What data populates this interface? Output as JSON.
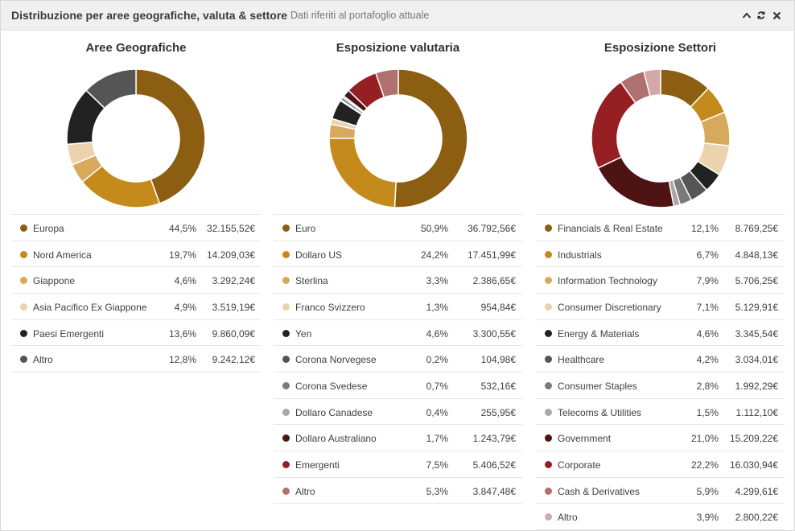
{
  "header": {
    "title": "Distribuzione per aree geografiche, valuta & settore",
    "subtitle": "Dati riferiti al portafoglio attuale"
  },
  "panels": [
    {
      "id": "geo",
      "title": "Aree Geografiche",
      "items": [
        {
          "label": "Europa",
          "pct": "44,5%",
          "pct_value": 44.5,
          "value": "32.155,52€",
          "color": "#8b5e12"
        },
        {
          "label": "Nord America",
          "pct": "19,7%",
          "pct_value": 19.7,
          "value": "14.209,03€",
          "color": "#c48a1b"
        },
        {
          "label": "Giappone",
          "pct": "4,6%",
          "pct_value": 4.6,
          "value": "3.292,24€",
          "color": "#d6a95c"
        },
        {
          "label": "Asia Pacifico Ex Giappone",
          "pct": "4,9%",
          "pct_value": 4.9,
          "value": "3.519,19€",
          "color": "#ead3ad"
        },
        {
          "label": "Paesi Emergenti",
          "pct": "13,6%",
          "pct_value": 13.6,
          "value": "9.860,09€",
          "color": "#222222"
        },
        {
          "label": "Altro",
          "pct": "12,8%",
          "pct_value": 12.8,
          "value": "9.242,12€",
          "color": "#555555"
        }
      ]
    },
    {
      "id": "fx",
      "title": "Esposizione valutaria",
      "items": [
        {
          "label": "Euro",
          "pct": "50,9%",
          "pct_value": 50.9,
          "value": "36.792,56€",
          "color": "#8b5e12"
        },
        {
          "label": "Dollaro US",
          "pct": "24,2%",
          "pct_value": 24.2,
          "value": "17.451,99€",
          "color": "#c48a1b"
        },
        {
          "label": "Sterlina",
          "pct": "3,3%",
          "pct_value": 3.3,
          "value": "2.386,65€",
          "color": "#d6a95c"
        },
        {
          "label": "Franco Svizzero",
          "pct": "1,3%",
          "pct_value": 1.3,
          "value": "954,84€",
          "color": "#ead3ad"
        },
        {
          "label": "Yen",
          "pct": "4,6%",
          "pct_value": 4.6,
          "value": "3.300,55€",
          "color": "#222222"
        },
        {
          "label": "Corona Norvegese",
          "pct": "0,2%",
          "pct_value": 0.2,
          "value": "104,98€",
          "color": "#555555"
        },
        {
          "label": "Corona Svedese",
          "pct": "0,7%",
          "pct_value": 0.7,
          "value": "532,16€",
          "color": "#7a7a7a"
        },
        {
          "label": "Dollaro Canadese",
          "pct": "0,4%",
          "pct_value": 0.4,
          "value": "255,95€",
          "color": "#a8a8a8"
        },
        {
          "label": "Dollaro Australiano",
          "pct": "1,7%",
          "pct_value": 1.7,
          "value": "1.243,79€",
          "color": "#4e1414"
        },
        {
          "label": "Emergenti",
          "pct": "7,5%",
          "pct_value": 7.5,
          "value": "5.406,52€",
          "color": "#961f24"
        },
        {
          "label": "Altro",
          "pct": "5,3%",
          "pct_value": 5.3,
          "value": "3.847,48€",
          "color": "#b07070"
        }
      ]
    },
    {
      "id": "sect",
      "title": "Esposizione Settori",
      "items": [
        {
          "label": "Financials & Real Estate",
          "pct": "12,1%",
          "pct_value": 12.1,
          "value": "8.769,25€",
          "color": "#8b5e12"
        },
        {
          "label": "Industrials",
          "pct": "6,7%",
          "pct_value": 6.7,
          "value": "4.848,13€",
          "color": "#c48a1b"
        },
        {
          "label": "Information Technology",
          "pct": "7,9%",
          "pct_value": 7.9,
          "value": "5.706,25€",
          "color": "#d6a95c"
        },
        {
          "label": "Consumer Discretionary",
          "pct": "7,1%",
          "pct_value": 7.1,
          "value": "5.129,91€",
          "color": "#ead3ad"
        },
        {
          "label": "Energy & Materials",
          "pct": "4,6%",
          "pct_value": 4.6,
          "value": "3.345,54€",
          "color": "#222222"
        },
        {
          "label": "Healthcare",
          "pct": "4,2%",
          "pct_value": 4.2,
          "value": "3.034,01€",
          "color": "#555555"
        },
        {
          "label": "Consumer Staples",
          "pct": "2,8%",
          "pct_value": 2.8,
          "value": "1.992,29€",
          "color": "#7a7a7a"
        },
        {
          "label": "Telecoms & Utilities",
          "pct": "1,5%",
          "pct_value": 1.5,
          "value": "1.112,10€",
          "color": "#a8a8a8"
        },
        {
          "label": "Government",
          "pct": "21,0%",
          "pct_value": 21.0,
          "value": "15.209,22€",
          "color": "#4e1414"
        },
        {
          "label": "Corporate",
          "pct": "22,2%",
          "pct_value": 22.2,
          "value": "16.030,94€",
          "color": "#961f24"
        },
        {
          "label": "Cash & Derivatives",
          "pct": "5,9%",
          "pct_value": 5.9,
          "value": "4.299,61€",
          "color": "#b07070"
        },
        {
          "label": "Altro",
          "pct": "3,9%",
          "pct_value": 3.9,
          "value": "2.800,22€",
          "color": "#d4a8a8"
        }
      ]
    }
  ],
  "chart_data": [
    {
      "type": "pie",
      "title": "Aree Geografiche",
      "categories": [
        "Europa",
        "Nord America",
        "Giappone",
        "Asia Pacifico Ex Giappone",
        "Paesi Emergenti",
        "Altro"
      ],
      "values": [
        44.5,
        19.7,
        4.6,
        4.9,
        13.6,
        12.8
      ]
    },
    {
      "type": "pie",
      "title": "Esposizione valutaria",
      "categories": [
        "Euro",
        "Dollaro US",
        "Sterlina",
        "Franco Svizzero",
        "Yen",
        "Corona Norvegese",
        "Corona Svedese",
        "Dollaro Canadese",
        "Dollaro Australiano",
        "Emergenti",
        "Altro"
      ],
      "values": [
        50.9,
        24.2,
        3.3,
        1.3,
        4.6,
        0.2,
        0.7,
        0.4,
        1.7,
        7.5,
        5.3
      ]
    },
    {
      "type": "pie",
      "title": "Esposizione Settori",
      "categories": [
        "Financials & Real Estate",
        "Industrials",
        "Information Technology",
        "Consumer Discretionary",
        "Energy & Materials",
        "Healthcare",
        "Consumer Staples",
        "Telecoms & Utilities",
        "Government",
        "Corporate",
        "Cash & Derivatives",
        "Altro"
      ],
      "values": [
        12.1,
        6.7,
        7.9,
        7.1,
        4.6,
        4.2,
        2.8,
        1.5,
        21.0,
        22.2,
        5.9,
        3.9
      ]
    }
  ]
}
